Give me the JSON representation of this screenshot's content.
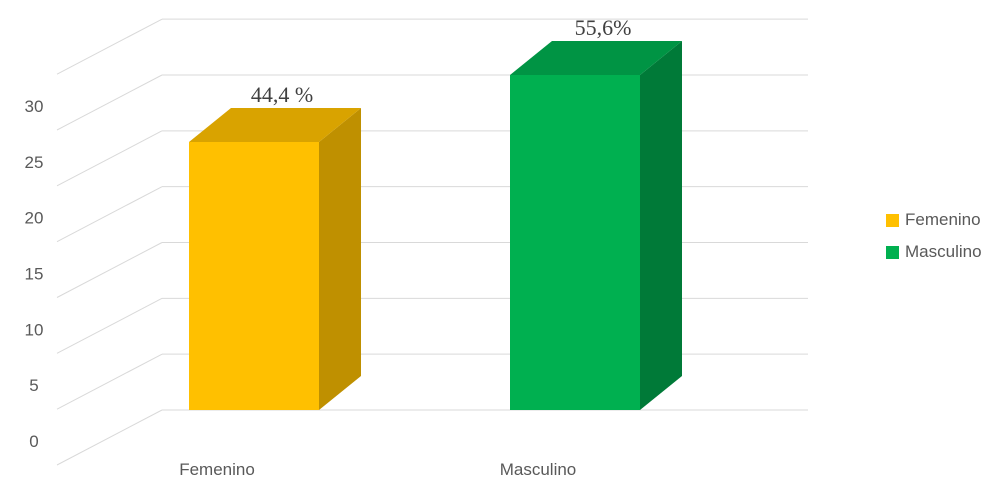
{
  "chart_data": {
    "type": "bar",
    "categories": [
      "Femenino",
      "Masculino"
    ],
    "values": [
      24,
      30
    ],
    "data_labels": [
      "44,4 %",
      "55,6%"
    ],
    "ylim": [
      0,
      30
    ],
    "yticks": [
      0,
      5,
      10,
      15,
      20,
      25,
      30
    ],
    "grid": true,
    "three_d": true,
    "legend": {
      "position": "right",
      "entries": [
        {
          "label": "Femenino",
          "color": "#FFC000"
        },
        {
          "label": "Masculino",
          "color": "#00B050"
        }
      ]
    },
    "colors": {
      "Femenino": {
        "front": "#FFC000",
        "side": "#BF9000",
        "top": "#D9A300"
      },
      "Masculino": {
        "front": "#00B050",
        "side": "#007A38",
        "top": "#009444"
      }
    }
  }
}
